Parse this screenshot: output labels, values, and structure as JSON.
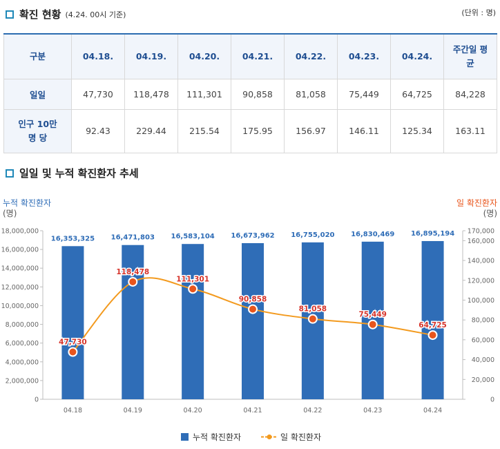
{
  "section1": {
    "title": "확진 현황",
    "subtitle": "(4.24. 00시 기준)",
    "unit": "(단위 : 명)"
  },
  "table": {
    "headers": [
      "구분",
      "04.18.",
      "04.19.",
      "04.20.",
      "04.21.",
      "04.22.",
      "04.23.",
      "04.24.",
      "주간일 평균"
    ],
    "rows": [
      {
        "label": "일일",
        "values": [
          "47,730",
          "118,478",
          "111,301",
          "90,858",
          "81,058",
          "75,449",
          "64,725",
          "84,228"
        ]
      },
      {
        "label": "인구 10만 명 당",
        "values": [
          "92.43",
          "229.44",
          "215.54",
          "175.95",
          "156.97",
          "146.11",
          "125.34",
          "163.11"
        ]
      }
    ]
  },
  "section2": {
    "title": "일일 및 누적 확진환자 추세"
  },
  "chart_data": {
    "type": "bar",
    "categories": [
      "04.18",
      "04.19",
      "04.20",
      "04.21",
      "04.22",
      "04.23",
      "04.24"
    ],
    "series": [
      {
        "name": "누적 확진환자",
        "type": "bar",
        "axis": "left",
        "color": "#2f6db7",
        "values": [
          16353325,
          16471803,
          16583104,
          16673962,
          16755020,
          16830469,
          16895194
        ]
      },
      {
        "name": "일 확진환자",
        "type": "line",
        "axis": "right",
        "color": "#f39a1e",
        "values": [
          47730,
          118478,
          111301,
          90858,
          81058,
          75449,
          64725
        ]
      }
    ],
    "y_left": {
      "label": "누적 확진환자",
      "unit": "(명)",
      "range": [
        0,
        18000000
      ],
      "ticks": [
        "0",
        "2,000,000",
        "4,000,000",
        "6,000,000",
        "8,000,000",
        "10,000,000",
        "12,000,000",
        "14,000,000",
        "16,000,000",
        "18,000,000"
      ]
    },
    "y_right": {
      "label": "일 확진환자",
      "unit": "(명)",
      "range": [
        0,
        170000
      ],
      "ticks": [
        "0",
        "20,000",
        "40,000",
        "60,000",
        "80,000",
        "100,000",
        "120,000",
        "140,000",
        "160,000",
        "170,000"
      ]
    },
    "bar_labels": [
      "16,353,325",
      "16,471,803",
      "16,583,104",
      "16,673,962",
      "16,755,020",
      "16,830,469",
      "16,895,194"
    ],
    "line_labels": [
      "47,730",
      "118,478",
      "111,301",
      "90,858",
      "81,058",
      "75,449",
      "64,725"
    ],
    "legend": {
      "bar": "누적 확진환자",
      "line": "일 확진환자",
      "position": "bottom"
    },
    "grid": false
  }
}
